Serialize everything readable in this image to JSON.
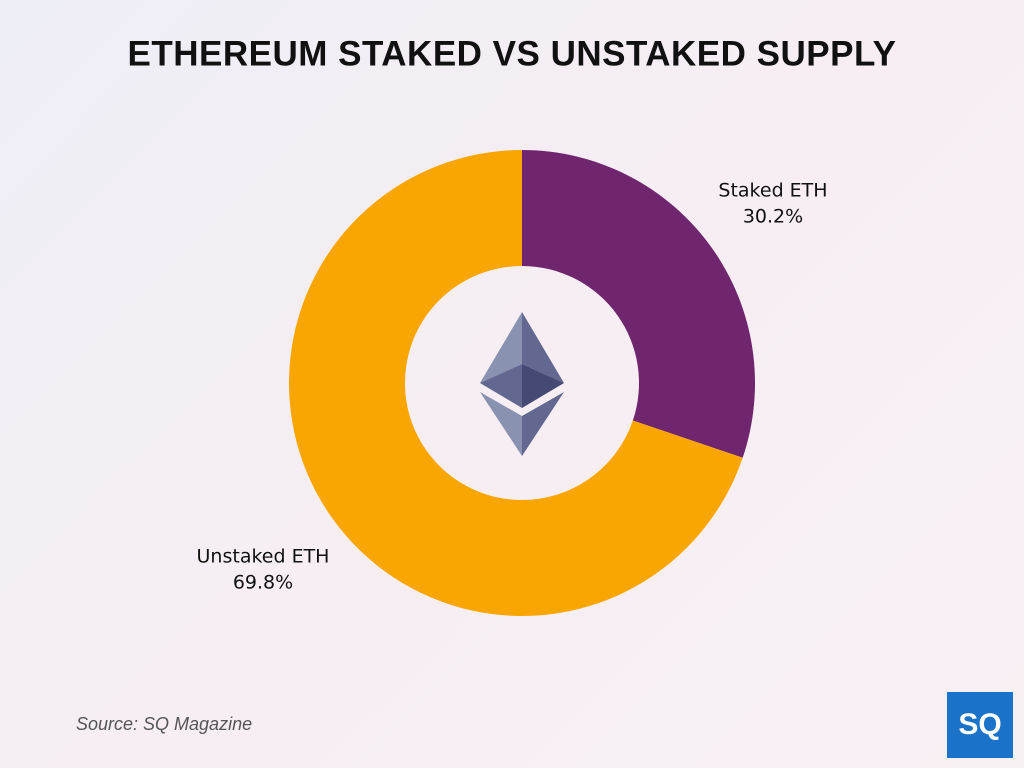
{
  "chart_data": {
    "type": "pie",
    "donut": true,
    "title": "ETHEREUM STAKED VS UNSTAKED SUPPLY",
    "categories": [
      "Staked ETH",
      "Unstaked ETH"
    ],
    "values": [
      30.2,
      69.8
    ],
    "value_labels": [
      "30.2%",
      "69.8%"
    ],
    "colors": [
      "#70266e",
      "#f9a602"
    ],
    "source": "Source: SQ Magazine"
  },
  "logo": "SQ"
}
